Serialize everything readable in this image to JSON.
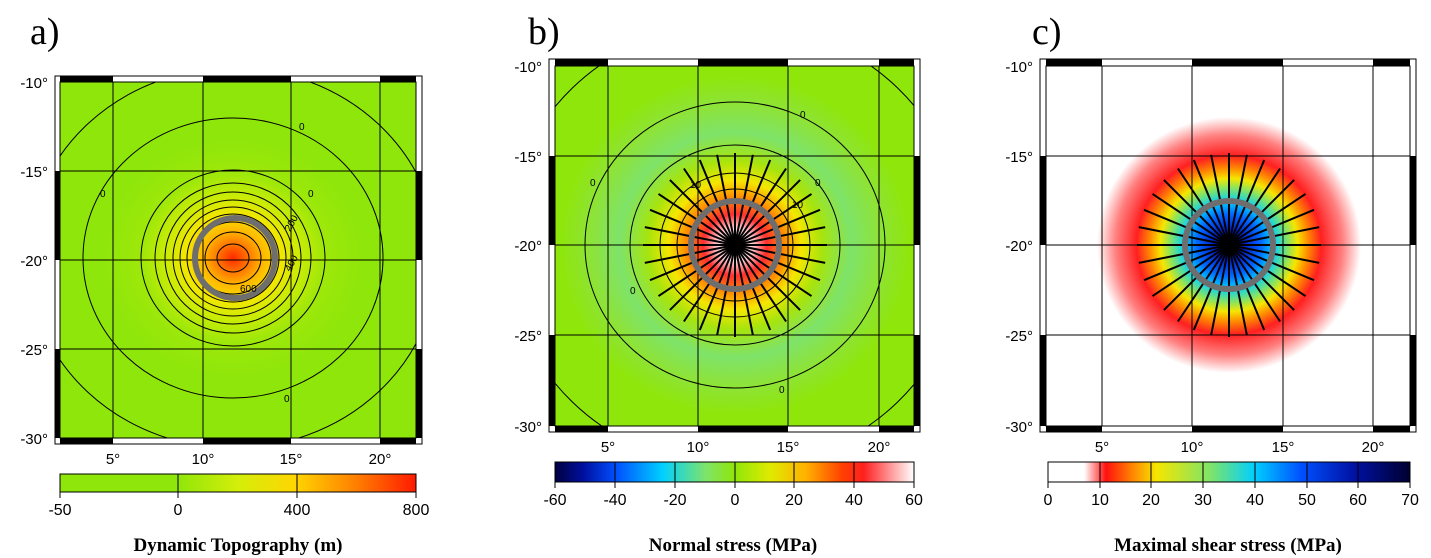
{
  "panels": [
    {
      "id": "a",
      "label": "a)",
      "colorbar_title": "Dynamic Topography (m)",
      "colorbar_ticks": [
        "-50",
        "0",
        "400",
        "800"
      ],
      "contour_labels": [
        "0",
        "0",
        "0",
        "0",
        "200",
        "400",
        "600"
      ]
    },
    {
      "id": "b",
      "label": "b)",
      "colorbar_title": "Normal stress (MPa)",
      "colorbar_ticks": [
        "-60",
        "-40",
        "-20",
        "0",
        "20",
        "40",
        "60"
      ],
      "contour_labels": [
        "0",
        "0",
        "0",
        "0",
        "10",
        "10",
        "0"
      ]
    },
    {
      "id": "c",
      "label": "c)",
      "colorbar_title": "Maximal shear stress (MPa)",
      "colorbar_ticks": [
        "0",
        "10",
        "20",
        "30",
        "40",
        "50",
        "60",
        "70"
      ],
      "contour_labels": []
    }
  ],
  "axes": {
    "lon_ticks": [
      "5°",
      "10°",
      "15°",
      "20°"
    ],
    "lat_ticks": [
      "-10°",
      "-15°",
      "-20°",
      "-25°",
      "-30°"
    ]
  },
  "colors": {
    "ring": "#6e6e6e",
    "background_green": "#8fe60a",
    "frame": "#000000"
  }
}
